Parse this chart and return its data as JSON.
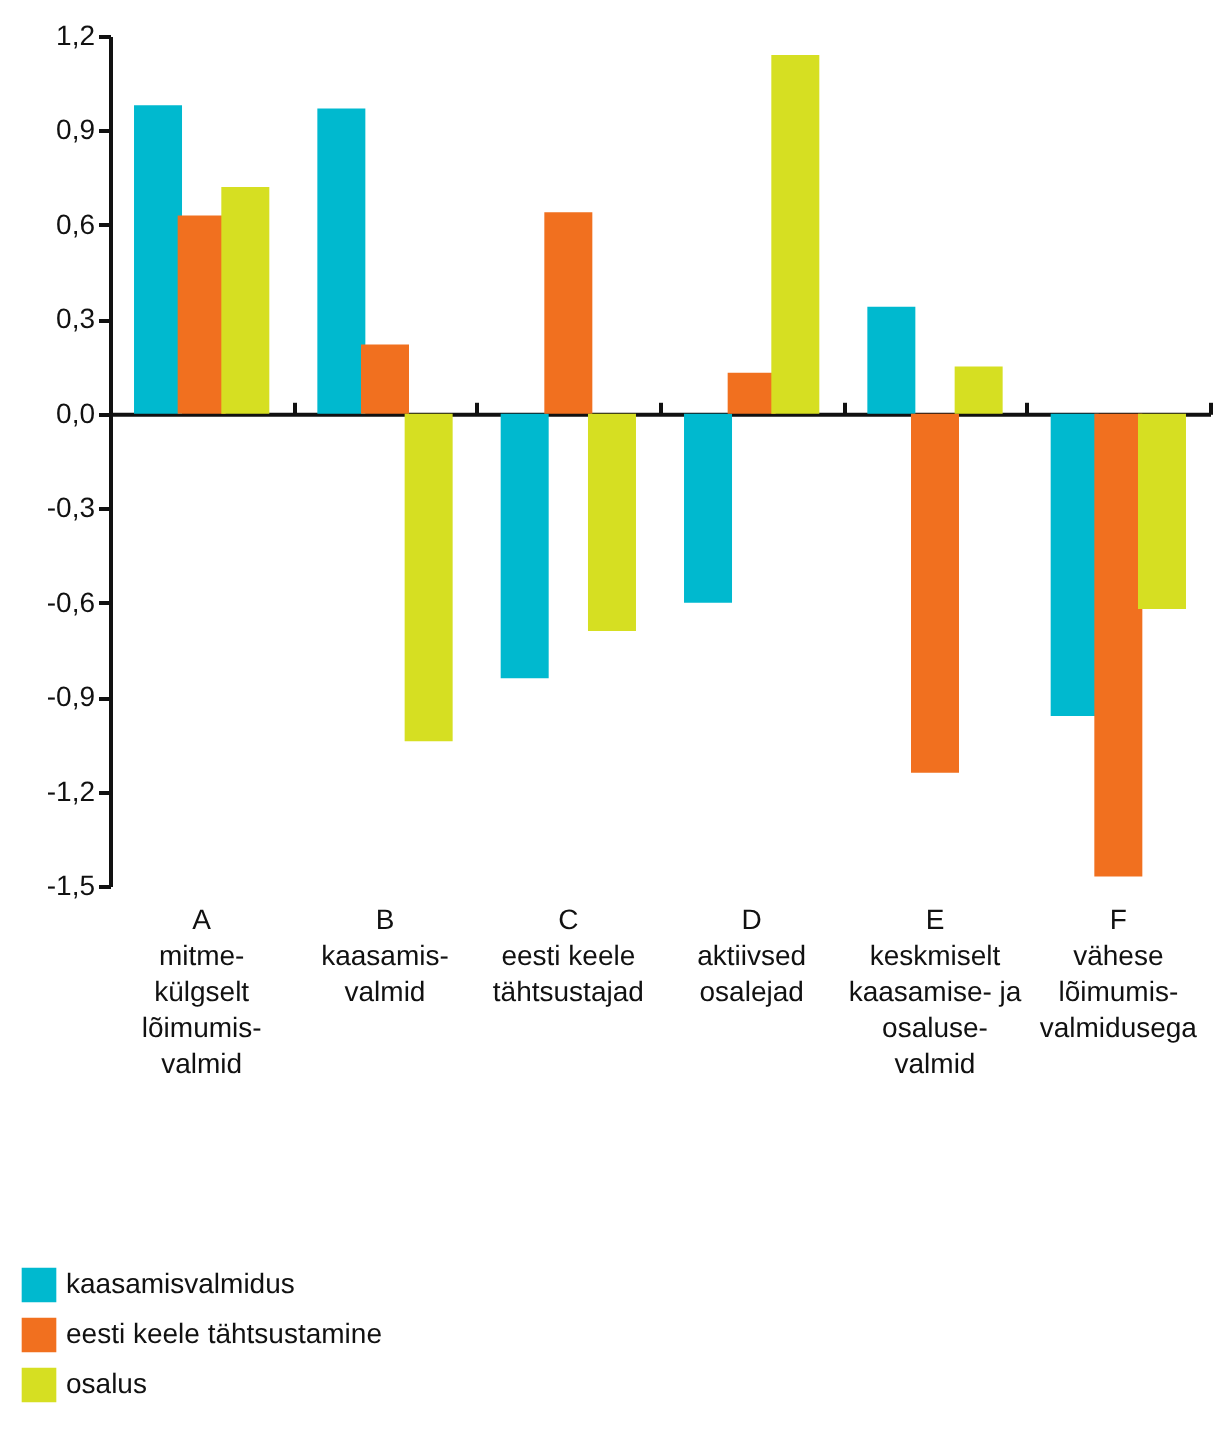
{
  "chart_data": {
    "type": "bar",
    "categories": [
      "A\nmitme-\nkülgselt\nlõimumis-\nvalmid",
      "B\nkaasamis-\nvalmid",
      "C\neesti keele\ntähtsustajad",
      "D\naktiivsed\nosalejad",
      "E\nkeskmiselt\nkaasamise- ja\nosaluse-\nvalmid",
      "F\nvähese\nlõimumis-\nvalmidusega"
    ],
    "series": [
      {
        "name": "kaasamisvalmidus",
        "color": "#00b9cf",
        "values": [
          0.98,
          0.97,
          -0.84,
          -0.6,
          0.34,
          -0.96
        ]
      },
      {
        "name": "eesti keele tähtsustamine",
        "color": "#f1701f",
        "values": [
          0.63,
          0.22,
          0.64,
          0.13,
          -1.14,
          -1.47
        ]
      },
      {
        "name": "osalus",
        "color": "#d6df22",
        "values": [
          0.72,
          -1.04,
          -0.69,
          1.14,
          0.15,
          -0.62
        ]
      }
    ],
    "ylim": [
      -1.5,
      1.2
    ],
    "yticks": [
      {
        "value": 1.2,
        "label": "1,2"
      },
      {
        "value": 0.9,
        "label": "0,9"
      },
      {
        "value": 0.6,
        "label": "0,6"
      },
      {
        "value": 0.3,
        "label": "0,3"
      },
      {
        "value": 0.0,
        "label": "0,0"
      },
      {
        "value": -0.3,
        "label": "-0,3"
      },
      {
        "value": -0.6,
        "label": "-0,6"
      },
      {
        "value": -0.9,
        "label": "-0,9"
      },
      {
        "value": -1.2,
        "label": "-1,2"
      },
      {
        "value": -1.5,
        "label": "-1,5"
      }
    ],
    "legend": "bottom left"
  }
}
